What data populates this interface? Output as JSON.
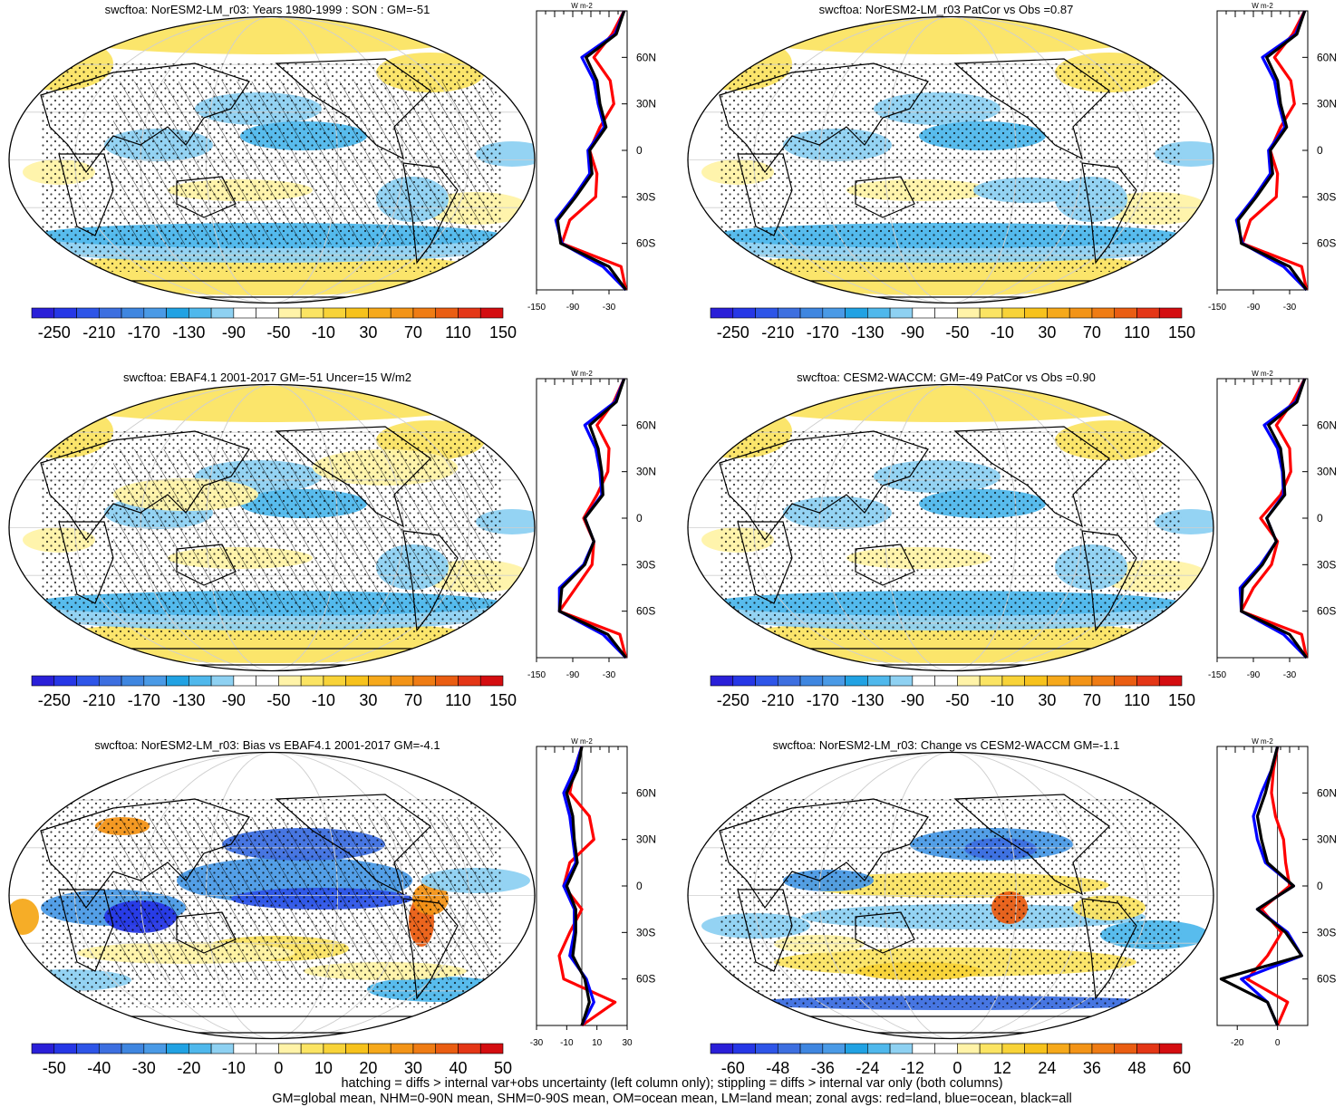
{
  "panels": [
    {
      "id": "p1",
      "title": "swcftoa: NorESM2-LM_r03: Years 1980-1999 : SON : GM=-51",
      "scale": "abs",
      "hatch": true
    },
    {
      "id": "p2",
      "title": "swcftoa: NorESM2-LM_r03 PatCor vs Obs =0.87",
      "scale": "abs",
      "hatch": false
    },
    {
      "id": "p3",
      "title": "swcftoa: EBAF4.1 2001-2017 GM=-51 Uncer=15 W/m2",
      "scale": "abs",
      "hatch": true
    },
    {
      "id": "p4",
      "title": "swcftoa: CESM2-WACCM: GM=-49 PatCor vs Obs =0.90",
      "scale": "abs",
      "hatch": false
    },
    {
      "id": "p5",
      "title": "swcftoa: NorESM2-LM_r03: Bias vs EBAF4.1 2001-2017  GM=-4.1",
      "scale": "bias",
      "hatch": true
    },
    {
      "id": "p6",
      "title": "swcftoa: NorESM2-LM_r03: Change vs CESM2-WACCM GM=-1.1",
      "scale": "change",
      "hatch": false
    }
  ],
  "colorbars": {
    "abs": {
      "labels": [
        "-250",
        "-210",
        "-170",
        "-130",
        "-90",
        "-50",
        "-10",
        "30",
        "70",
        "110",
        "150"
      ]
    },
    "bias": {
      "labels": [
        "-50",
        "-40",
        "-30",
        "-20",
        "-10",
        "0",
        "10",
        "20",
        "30",
        "40",
        "50"
      ]
    },
    "change": {
      "labels": [
        "-60",
        "-48",
        "-36",
        "-24",
        "-12",
        "0",
        "12",
        "24",
        "36",
        "48",
        "60"
      ]
    }
  },
  "profile_units": "W m-2",
  "lat_labels": [
    "60N",
    "30N",
    "0",
    "30S",
    "60S"
  ],
  "profile_ticks": {
    "abs": [
      "-150",
      "-90",
      "-30"
    ],
    "bias": [
      "-30",
      "-10",
      "10",
      "30"
    ],
    "change": [
      "-20",
      "0"
    ]
  },
  "legend_colors": {
    "land": "#ff0000",
    "ocean": "#0000ff",
    "all": "#000000"
  },
  "footer": {
    "line1": "hatching = diffs > internal var+obs uncertainty (left column only); stippling = diffs > internal var only (both columns)",
    "line2": "GM=global mean, NHM=0-90N mean, SHM=0-90S mean, OM=ocean mean, LM=land mean; zonal avgs: red=land, blue=ocean, black=all"
  },
  "chart_data": [
    {
      "type": "heatmap",
      "title": "swcftoa: NorESM2-LM_r03: Years 1980-1999 : SON : GM=-51",
      "units": "W m-2",
      "zonal": {
        "lat": [
          90,
          75,
          60,
          45,
          30,
          15,
          0,
          -15,
          -30,
          -45,
          -60,
          -75,
          -90
        ],
        "land": [
          -5,
          -25,
          -55,
          -28,
          -22,
          -45,
          -62,
          -50,
          -52,
          -95,
          -108,
          -10,
          -2
        ],
        "ocean": [
          -5,
          -20,
          -75,
          -55,
          -48,
          -38,
          -65,
          -62,
          -88,
          -118,
          -108,
          -40,
          -2
        ],
        "all": [
          -5,
          -18,
          -68,
          -50,
          -45,
          -35,
          -62,
          -58,
          -85,
          -115,
          -110,
          -30,
          -2
        ]
      }
    },
    {
      "type": "heatmap",
      "title": "swcftoa: NorESM2-LM_r03 PatCor vs Obs =0.87",
      "units": "W m-2",
      "zonal": {
        "lat": [
          90,
          75,
          60,
          45,
          30,
          15,
          0,
          -15,
          -30,
          -45,
          -60,
          -75,
          -90
        ],
        "land": [
          -5,
          -25,
          -55,
          -28,
          -22,
          -45,
          -62,
          -50,
          -52,
          -95,
          -108,
          -10,
          -2
        ],
        "ocean": [
          -5,
          -20,
          -75,
          -55,
          -48,
          -38,
          -65,
          -62,
          -88,
          -118,
          -108,
          -40,
          -2
        ],
        "all": [
          -5,
          -18,
          -68,
          -50,
          -45,
          -35,
          -62,
          -58,
          -85,
          -115,
          -110,
          -30,
          -2
        ]
      }
    },
    {
      "type": "heatmap",
      "title": "swcftoa: EBAF4.1 2001-2017 GM=-51 Uncer=15 W/m2",
      "units": "W m-2",
      "zonal": {
        "lat": [
          90,
          75,
          60,
          45,
          30,
          15,
          0,
          -15,
          -30,
          -45,
          -60,
          -75,
          -90
        ],
        "land": [
          -5,
          -22,
          -50,
          -30,
          -32,
          -50,
          -72,
          -55,
          -58,
          -85,
          -112,
          -12,
          -2
        ],
        "ocean": [
          -5,
          -20,
          -70,
          -52,
          -45,
          -42,
          -70,
          -55,
          -72,
          -112,
          -112,
          -40,
          -2
        ],
        "all": [
          -5,
          -18,
          -62,
          -48,
          -42,
          -40,
          -70,
          -55,
          -70,
          -108,
          -112,
          -32,
          -2
        ]
      }
    },
    {
      "type": "heatmap",
      "title": "swcftoa: CESM2-WACCM: GM=-49 PatCor vs Obs =0.90",
      "units": "W m-2",
      "zonal": {
        "lat": [
          90,
          75,
          60,
          45,
          30,
          15,
          0,
          -15,
          -30,
          -45,
          -60,
          -75,
          -90
        ],
        "land": [
          -5,
          -25,
          -52,
          -30,
          -28,
          -45,
          -78,
          -50,
          -60,
          -90,
          -110,
          -10,
          -2
        ],
        "ocean": [
          -5,
          -20,
          -72,
          -50,
          -42,
          -40,
          -68,
          -52,
          -78,
          -112,
          -110,
          -40,
          -2
        ],
        "all": [
          -5,
          -18,
          -65,
          -45,
          -40,
          -38,
          -68,
          -52,
          -75,
          -108,
          -110,
          -30,
          -2
        ]
      }
    },
    {
      "type": "heatmap",
      "title": "swcftoa: NorESM2-LM_r03: Bias vs EBAF4.1 2001-2017  GM=-4.1",
      "units": "W m-2",
      "zonal": {
        "lat": [
          90,
          75,
          60,
          45,
          30,
          15,
          0,
          -15,
          -30,
          -45,
          -60,
          -75,
          -90
        ],
        "land": [
          0,
          -5,
          -8,
          5,
          8,
          -8,
          -12,
          0,
          -8,
          -15,
          -12,
          22,
          0
        ],
        "ocean": [
          0,
          -5,
          -12,
          -8,
          -6,
          -4,
          -12,
          -5,
          -5,
          -8,
          3,
          8,
          0
        ],
        "all": [
          0,
          -3,
          -10,
          -6,
          -5,
          -3,
          -10,
          -4,
          -4,
          -6,
          2,
          5,
          0
        ]
      }
    },
    {
      "type": "heatmap",
      "title": "swcftoa: NorESM2-LM_r03: Change vs CESM2-WACCM GM=-1.1",
      "units": "W m-2",
      "zonal": {
        "lat": [
          90,
          75,
          60,
          45,
          30,
          15,
          0,
          -15,
          -30,
          -45,
          -60,
          -75,
          -90
        ],
        "land": [
          0,
          -2,
          -3,
          -1,
          3,
          4,
          6,
          -8,
          2,
          -5,
          -15,
          5,
          0
        ],
        "ocean": [
          0,
          -3,
          -8,
          -12,
          -10,
          -6,
          8,
          -10,
          5,
          12,
          -18,
          -5,
          0
        ],
        "all": [
          0,
          -3,
          -6,
          -10,
          -8,
          -5,
          8,
          -10,
          4,
          12,
          -28,
          -5,
          0
        ]
      }
    }
  ]
}
